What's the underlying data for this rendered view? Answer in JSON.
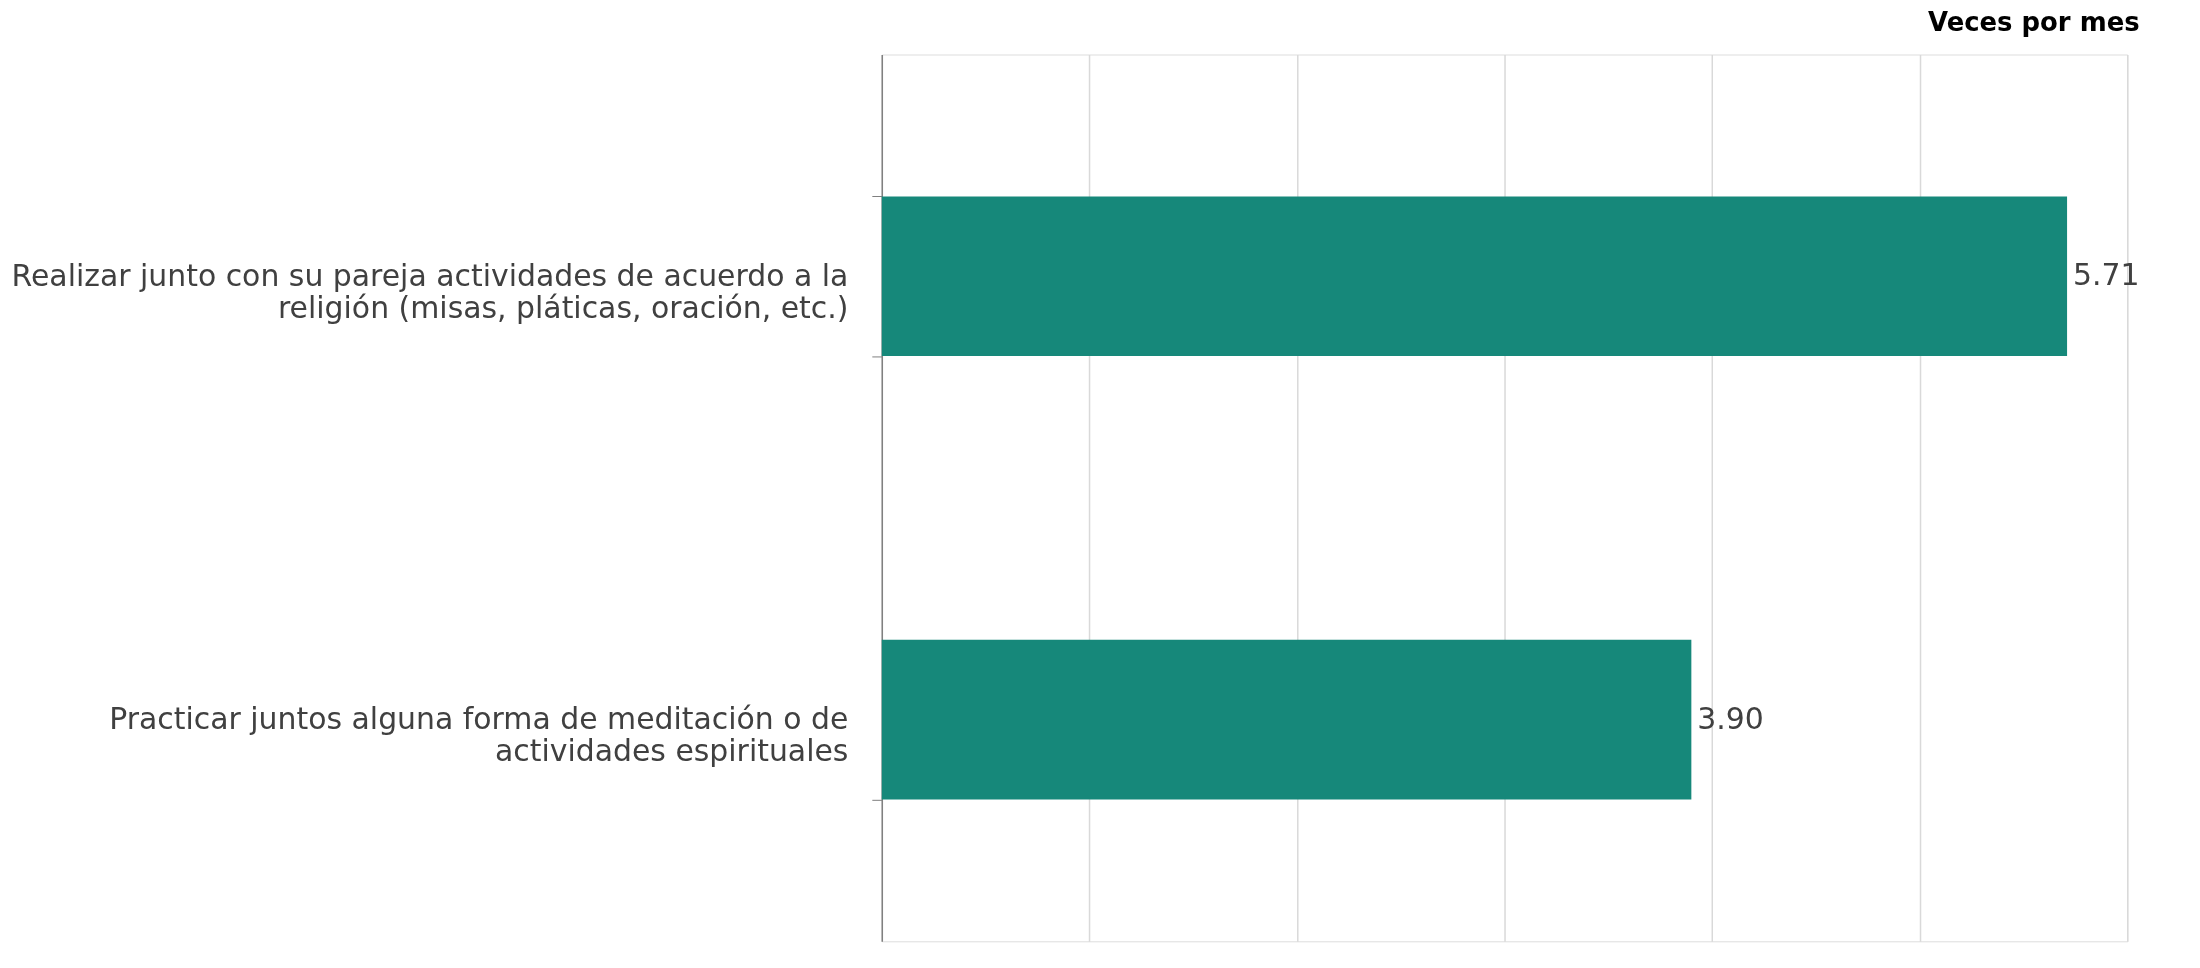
{
  "chart_data": {
    "type": "bar",
    "orientation": "horizontal",
    "title": "Veces por mes",
    "categories": [
      "Realizar junto con su pareja actividades de acuerdo a la religión (misas, pláticas, oración, etc.)",
      "Practicar juntos alguna forma de meditación o de actividades espirituales"
    ],
    "values": [
      5.71,
      3.9
    ],
    "value_labels": [
      "5.71",
      "3.90"
    ],
    "color": "#16887a",
    "xlim": [
      0,
      6
    ],
    "xticks": [
      {
        "value": 0,
        "label": null
      },
      {
        "value": 1,
        "label": null
      },
      {
        "value": 2,
        "label": null
      },
      {
        "value": 3,
        "label": null
      },
      {
        "value": 4,
        "label": null
      },
      {
        "value": 5,
        "label": null
      },
      {
        "value": 6,
        "label": null
      }
    ],
    "grid": "x",
    "tick_labels": "y"
  }
}
